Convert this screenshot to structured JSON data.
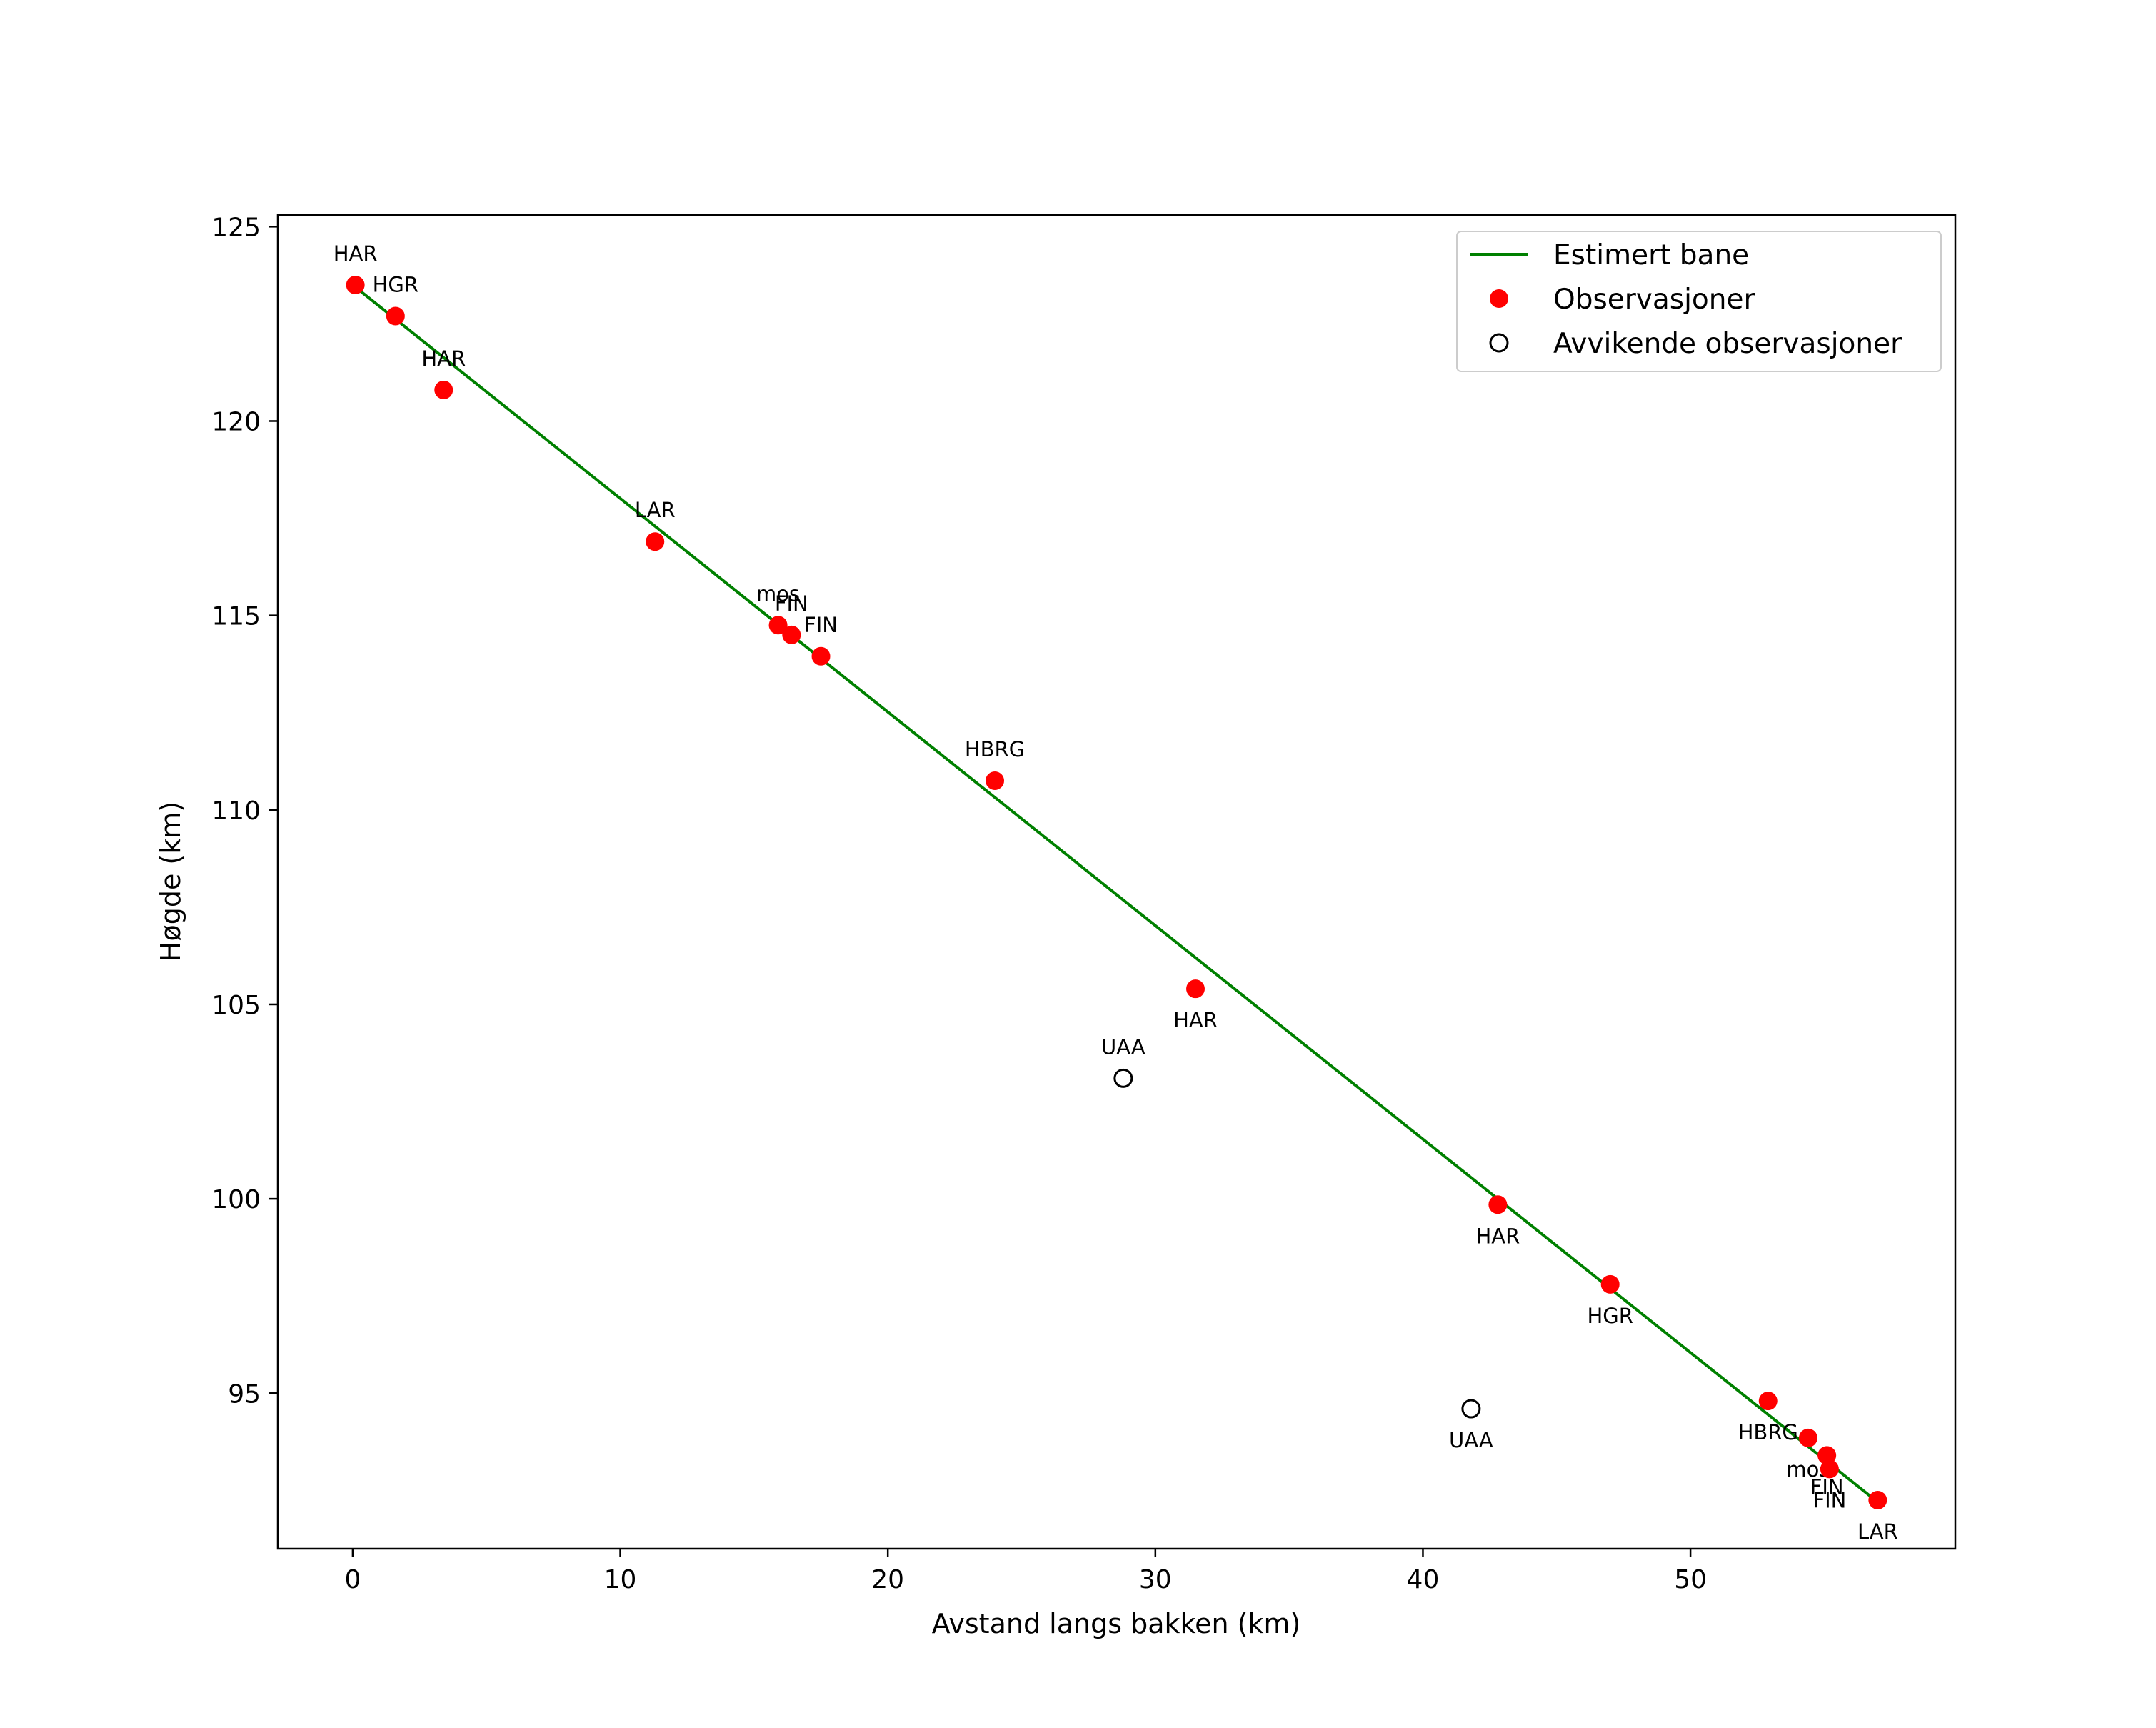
{
  "chart_data": {
    "type": "scatter",
    "title": "",
    "xlabel": "Avstand langs bakken (km)",
    "ylabel": "Høgde (km)",
    "xlim": [
      -2.8,
      59.9
    ],
    "ylim": [
      91.0,
      125.3
    ],
    "xticks": [
      0,
      10,
      20,
      30,
      40,
      50
    ],
    "yticks": [
      95,
      100,
      105,
      110,
      115,
      120,
      125
    ],
    "grid": false,
    "legend_position": "top-right",
    "colors": {
      "line": "#008000",
      "observation": "#ff0000",
      "outlier_edge": "#000000"
    },
    "series": [
      {
        "name": "Estimert bane",
        "kind": "line",
        "x": [
          0.0,
          57.0
        ],
        "y": [
          123.5,
          92.2
        ]
      },
      {
        "name": "Observasjoner",
        "kind": "scatter",
        "points": [
          {
            "x": 0.1,
            "y": 123.5,
            "label": "HAR",
            "label_pos": "above"
          },
          {
            "x": 1.6,
            "y": 122.7,
            "label": "HGR",
            "label_pos": "above"
          },
          {
            "x": 3.4,
            "y": 120.8,
            "label": "HAR",
            "label_pos": "above"
          },
          {
            "x": 11.3,
            "y": 116.9,
            "label": "LAR",
            "label_pos": "above"
          },
          {
            "x": 15.9,
            "y": 114.75,
            "label": "mos",
            "label_pos": "above"
          },
          {
            "x": 16.4,
            "y": 114.5,
            "label": "FIN",
            "label_pos": "above"
          },
          {
            "x": 17.5,
            "y": 113.95,
            "label": "FIN",
            "label_pos": "above"
          },
          {
            "x": 24.0,
            "y": 110.75,
            "label": "HBRG",
            "label_pos": "above"
          },
          {
            "x": 31.5,
            "y": 105.4,
            "label": "HAR",
            "label_pos": "below"
          },
          {
            "x": 42.8,
            "y": 99.85,
            "label": "HAR",
            "label_pos": "below"
          },
          {
            "x": 47.0,
            "y": 97.8,
            "label": "HGR",
            "label_pos": "below"
          },
          {
            "x": 52.9,
            "y": 94.8,
            "label": "HBRG",
            "label_pos": "below"
          },
          {
            "x": 54.4,
            "y": 93.85,
            "label": "mos",
            "label_pos": "below"
          },
          {
            "x": 55.1,
            "y": 93.4,
            "label": "FIN",
            "label_pos": "below"
          },
          {
            "x": 55.2,
            "y": 93.05,
            "label": "FIN",
            "label_pos": "below"
          },
          {
            "x": 57.0,
            "y": 92.25,
            "label": "LAR",
            "label_pos": "below"
          }
        ]
      },
      {
        "name": "Avvikende observasjoner",
        "kind": "scatter",
        "points": [
          {
            "x": 28.8,
            "y": 103.1,
            "label": "UAA",
            "label_pos": "above"
          },
          {
            "x": 41.8,
            "y": 94.6,
            "label": "UAA",
            "label_pos": "below"
          }
        ]
      }
    ]
  }
}
